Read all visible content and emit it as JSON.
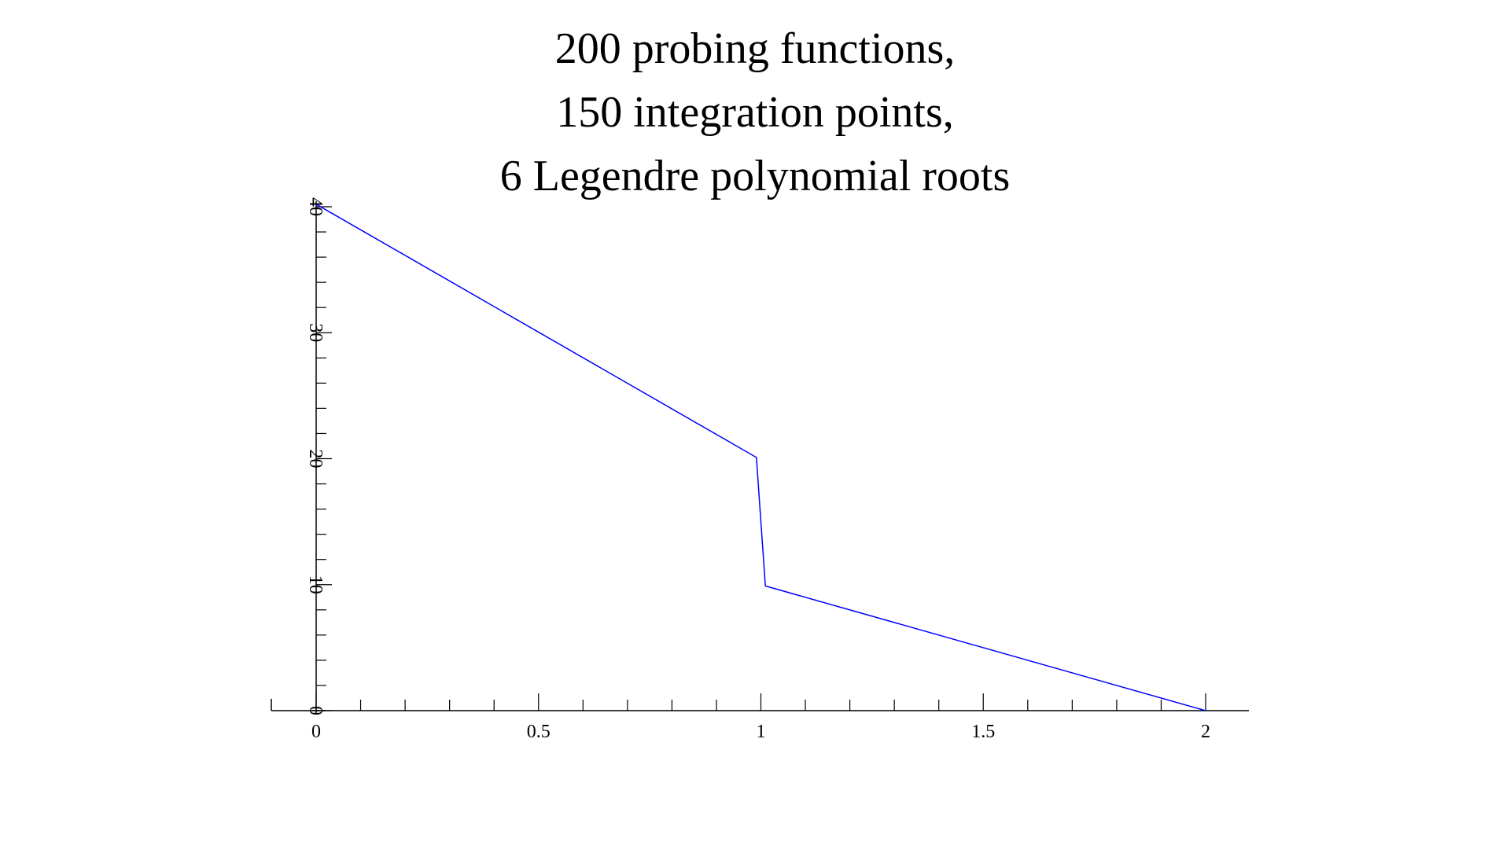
{
  "title_lines": [
    "200 probing functions,",
    "150 integration points,",
    "6 Legendre polynomial roots"
  ],
  "chart_data": {
    "type": "line",
    "title": "200 probing functions, 150 integration points, 6 Legendre polynomial roots",
    "xlabel": "",
    "ylabel": "",
    "xlim": [
      0,
      2
    ],
    "ylim": [
      0,
      40
    ],
    "x_ticks": [
      0,
      0.5,
      1,
      1.5,
      2
    ],
    "x_tick_labels": [
      "0",
      "0.5",
      "1",
      "1.5",
      "2"
    ],
    "y_ticks": [
      0,
      10,
      20,
      30,
      40
    ],
    "y_tick_labels": [
      "0",
      "10",
      "20",
      "30",
      "40"
    ],
    "grid": false,
    "series": [
      {
        "color": "#0000ff",
        "x": [
          0,
          0.99,
          1.01,
          2
        ],
        "y": [
          40.2,
          20.1,
          9.9,
          0
        ]
      }
    ]
  }
}
